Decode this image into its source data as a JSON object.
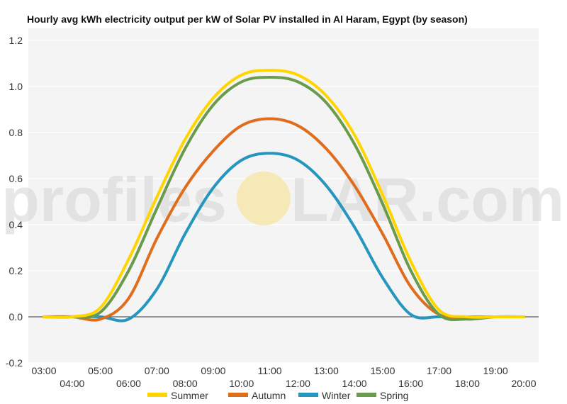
{
  "watermark": {
    "left": "profiles",
    "right": "LAR.com",
    "sun_color": "#f6e9b8"
  },
  "chart_data": {
    "type": "line",
    "title": "Hourly avg kWh electricity output per kW of Solar PV installed in Al Haram, Egypt (by season)",
    "xlabel": "",
    "ylabel": "",
    "x": [
      "03:00",
      "04:00",
      "05:00",
      "06:00",
      "07:00",
      "08:00",
      "09:00",
      "10:00",
      "11:00",
      "12:00",
      "13:00",
      "14:00",
      "15:00",
      "16:00",
      "17:00",
      "18:00",
      "19:00",
      "20:00"
    ],
    "x_tick_labels_upper": [
      "03:00",
      "05:00",
      "07:00",
      "09:00",
      "11:00",
      "13:00",
      "15:00",
      "17:00",
      "19:00"
    ],
    "x_tick_labels_lower": [
      "04:00",
      "06:00",
      "08:00",
      "10:00",
      "12:00",
      "14:00",
      "16:00",
      "18:00",
      "20:00"
    ],
    "ylim": [
      -0.2,
      1.2
    ],
    "yticks": [
      "-0.2",
      "0.0",
      "0.2",
      "0.4",
      "0.6",
      "0.8",
      "1.0",
      "1.2"
    ],
    "grid": true,
    "legend_position": "bottom",
    "series": [
      {
        "name": "Summer",
        "color": "#ffd500",
        "values": [
          0,
          0,
          0.04,
          0.25,
          0.52,
          0.77,
          0.95,
          1.05,
          1.07,
          1.05,
          0.96,
          0.79,
          0.53,
          0.24,
          0.03,
          0,
          0,
          0
        ]
      },
      {
        "name": "Autumn",
        "color": "#e06d1c",
        "values": [
          0,
          0,
          -0.01,
          0.08,
          0.34,
          0.56,
          0.72,
          0.83,
          0.86,
          0.83,
          0.73,
          0.57,
          0.36,
          0.13,
          0.01,
          0,
          0,
          0
        ]
      },
      {
        "name": "Winter",
        "color": "#2596be",
        "values": [
          0,
          0,
          0,
          -0.01,
          0.12,
          0.36,
          0.56,
          0.68,
          0.71,
          0.68,
          0.57,
          0.39,
          0.17,
          0.01,
          0,
          0,
          0,
          0
        ]
      },
      {
        "name": "Spring",
        "color": "#6a9a4c",
        "values": [
          0,
          0,
          0.02,
          0.2,
          0.47,
          0.73,
          0.92,
          1.02,
          1.04,
          1.02,
          0.93,
          0.75,
          0.49,
          0.2,
          0.01,
          -0.01,
          0,
          0
        ]
      }
    ]
  }
}
